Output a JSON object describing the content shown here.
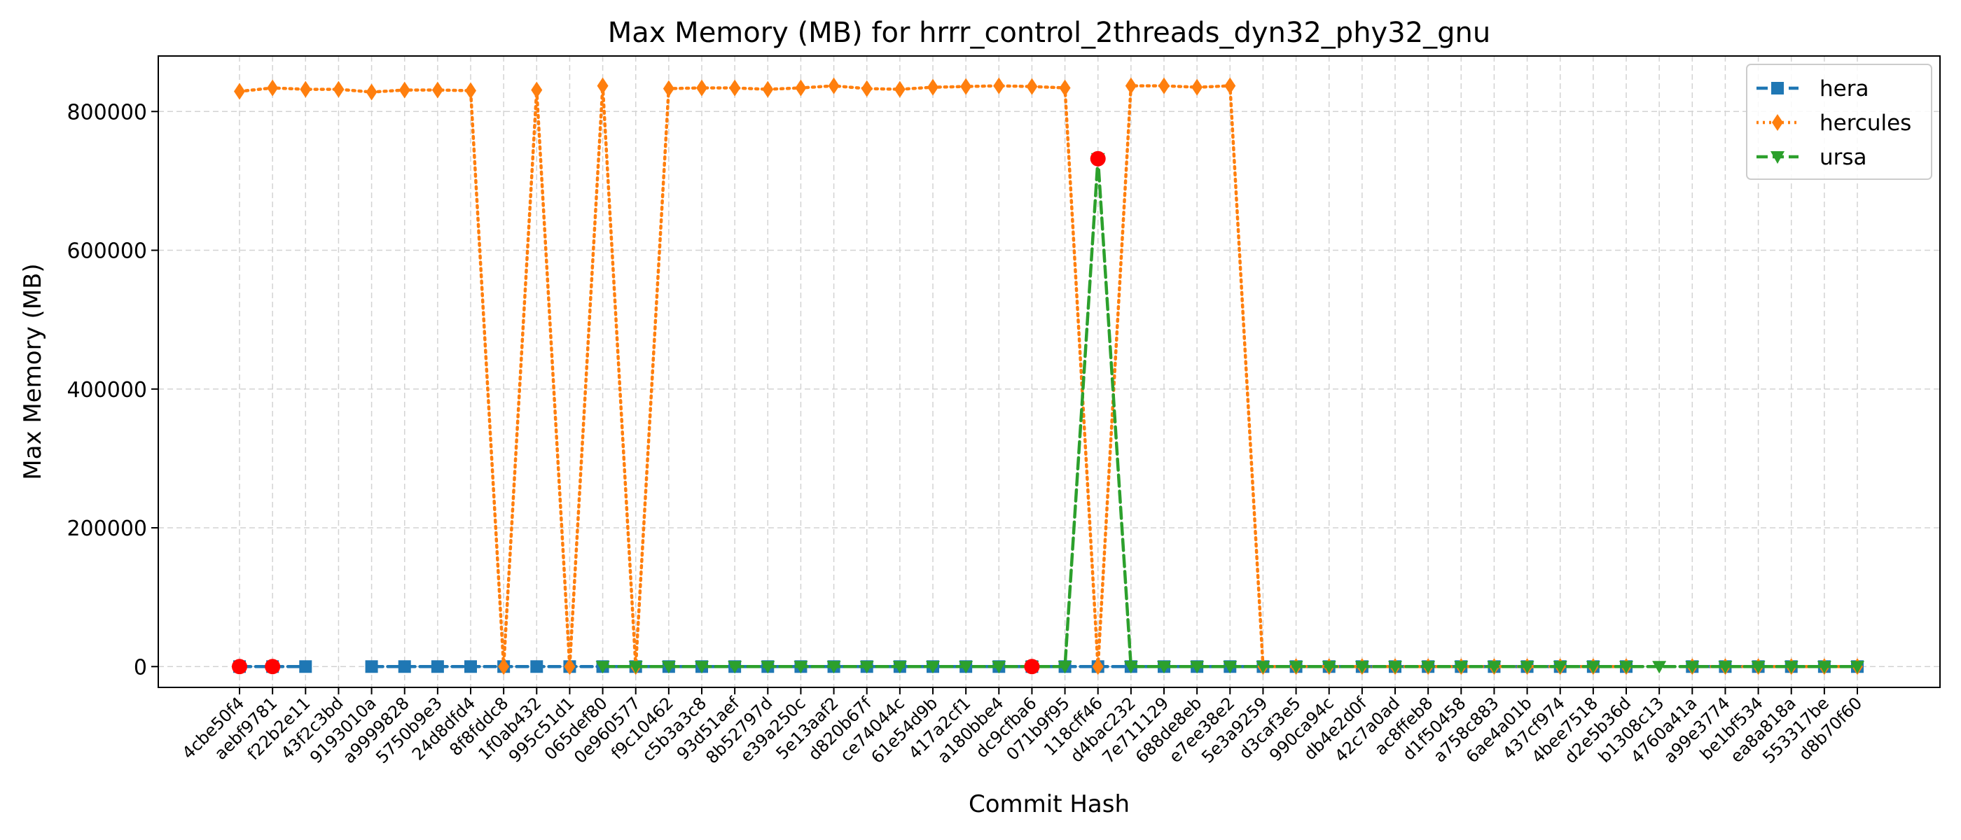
{
  "chart_data": {
    "type": "line",
    "title": "Max Memory (MB) for hrrr_control_2threads_dyn32_phy32_gnu",
    "xlabel": "Commit Hash",
    "ylabel": "Max Memory (MB)",
    "ylim": [
      -30000,
      880000
    ],
    "yticks": [
      0,
      200000,
      400000,
      600000,
      800000
    ],
    "ytick_labels": [
      "0",
      "200000",
      "400000",
      "600000",
      "800000"
    ],
    "grid": true,
    "legend_position": "top-right",
    "categories": [
      "4cbe50f4",
      "aebf9781",
      "f22b2e11",
      "43f2c3bd",
      "9193010a",
      "a9999828",
      "5750b9e3",
      "24d8dfd4",
      "8f8fddc8",
      "1f0ab432",
      "995c51d1",
      "065def80",
      "0e960577",
      "f9c10462",
      "c5b3a3c8",
      "93d51aef",
      "8b52797d",
      "e39a250c",
      "5e13aaf2",
      "d820b67f",
      "ce74044c",
      "61e54d9b",
      "417a2cf1",
      "a180bbe4",
      "dc9cfba6",
      "071b9f95",
      "118cff46",
      "d4bac232",
      "7e711129",
      "688de8eb",
      "e7ee38e2",
      "5e3a9259",
      "d3caf3e5",
      "990ca94c",
      "db4e2d0f",
      "42c7a0ad",
      "ac8ffeb8",
      "d1f50458",
      "a758c883",
      "6ae4a01b",
      "437cf974",
      "4bee7518",
      "d2e5b36d",
      "b1308c13",
      "4760a41a",
      "a99e3774",
      "be1bf534",
      "ea8a818a",
      "553317be",
      "d8b70f60"
    ],
    "series": [
      {
        "name": "hera",
        "color": "#1f77b4",
        "marker": "square",
        "linestyle": "dashed",
        "values": [
          0,
          0,
          0,
          null,
          0,
          0,
          0,
          0,
          0,
          0,
          0,
          0,
          0,
          0,
          0,
          0,
          0,
          0,
          0,
          0,
          0,
          0,
          0,
          0,
          0,
          0,
          0,
          0,
          0,
          0,
          0,
          0,
          0,
          0,
          0,
          0,
          0,
          0,
          0,
          0,
          0,
          0,
          0,
          null,
          0,
          0,
          0,
          0,
          0,
          0
        ]
      },
      {
        "name": "hercules",
        "color": "#ff7f0e",
        "marker": "diamond",
        "linestyle": "dotted",
        "values": [
          829000,
          834000,
          832000,
          832000,
          828000,
          831000,
          831000,
          830000,
          0,
          831000,
          0,
          837000,
          0,
          833000,
          834000,
          834000,
          832000,
          834000,
          837000,
          833000,
          832000,
          835000,
          836000,
          837000,
          836000,
          834000,
          0,
          837000,
          837000,
          835000,
          837000,
          0,
          0,
          0,
          0,
          0,
          0,
          0,
          0,
          0,
          0,
          0,
          0,
          null,
          0,
          0,
          0,
          0,
          0,
          0
        ]
      },
      {
        "name": "ursa",
        "color": "#2ca02c",
        "marker": "triangle-down",
        "linestyle": "dashed",
        "values": [
          null,
          null,
          null,
          null,
          null,
          null,
          null,
          null,
          null,
          null,
          null,
          0,
          0,
          0,
          0,
          0,
          0,
          0,
          0,
          0,
          0,
          0,
          0,
          0,
          0,
          0,
          732000,
          0,
          0,
          0,
          0,
          0,
          0,
          0,
          0,
          0,
          0,
          0,
          0,
          0,
          0,
          0,
          0,
          0,
          0,
          0,
          0,
          0,
          0,
          0
        ]
      }
    ],
    "highlighted_points": {
      "color": "#ff0000",
      "points": [
        {
          "category": "4cbe50f4",
          "value": 0
        },
        {
          "category": "aebf9781",
          "value": 0
        },
        {
          "category": "dc9cfba6",
          "value": 0
        },
        {
          "category": "118cff46",
          "value": 732000
        }
      ]
    }
  }
}
